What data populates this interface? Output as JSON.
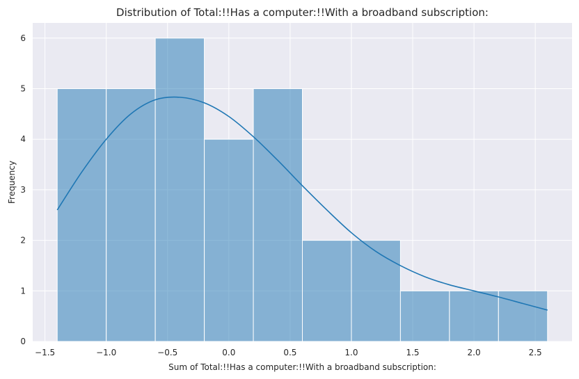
{
  "chart_data": {
    "type": "bar",
    "title": "Distribution of Total:!!Has a computer:!!With a broadband subscription:",
    "xlabel": "Sum of Total:!!Has a computer:!!With a broadband subscription:",
    "ylabel": "Frequency",
    "bins": [
      {
        "x0": -1.4,
        "x1": -1.0,
        "count": 5
      },
      {
        "x0": -1.0,
        "x1": -0.6,
        "count": 5
      },
      {
        "x0": -0.6,
        "x1": -0.2,
        "count": 6
      },
      {
        "x0": -0.2,
        "x1": 0.2,
        "count": 4
      },
      {
        "x0": 0.2,
        "x1": 0.6,
        "count": 5
      },
      {
        "x0": 0.6,
        "x1": 1.0,
        "count": 2
      },
      {
        "x0": 1.0,
        "x1": 1.4,
        "count": 2
      },
      {
        "x0": 1.4,
        "x1": 1.8,
        "count": 1
      },
      {
        "x0": 1.8,
        "x1": 2.2,
        "count": 1
      },
      {
        "x0": 2.2,
        "x1": 2.6,
        "count": 1
      }
    ],
    "kde": {
      "x": [
        -1.4,
        -1.2,
        -1.0,
        -0.8,
        -0.6,
        -0.4,
        -0.2,
        0.0,
        0.2,
        0.4,
        0.6,
        0.8,
        1.0,
        1.2,
        1.4,
        1.6,
        1.8,
        2.0,
        2.2,
        2.4,
        2.6
      ],
      "y": [
        2.6,
        3.35,
        4.0,
        4.5,
        4.78,
        4.83,
        4.72,
        4.45,
        4.05,
        3.58,
        3.08,
        2.6,
        2.15,
        1.78,
        1.5,
        1.28,
        1.12,
        1.0,
        0.88,
        0.75,
        0.62
      ]
    },
    "xticks": [
      -1.5,
      -1.0,
      -0.5,
      0.0,
      0.5,
      1.0,
      1.5,
      2.0,
      2.5
    ],
    "xtick_labels": [
      "−1.5",
      "−1.0",
      "−0.5",
      "0.0",
      "0.5",
      "1.0",
      "1.5",
      "2.0",
      "2.5"
    ],
    "yticks": [
      0,
      1,
      2,
      3,
      4,
      5,
      6
    ],
    "xlim": [
      -1.6,
      2.8
    ],
    "ylim": [
      0,
      6.3
    ],
    "grid": true,
    "colors": {
      "background": "#eaeaf2",
      "grid": "#ffffff",
      "bar_fill": "#1f77b4",
      "bar_opacity": "0.5",
      "bar_edge": "#ffffff",
      "kde_line": "#1f77b4"
    }
  }
}
